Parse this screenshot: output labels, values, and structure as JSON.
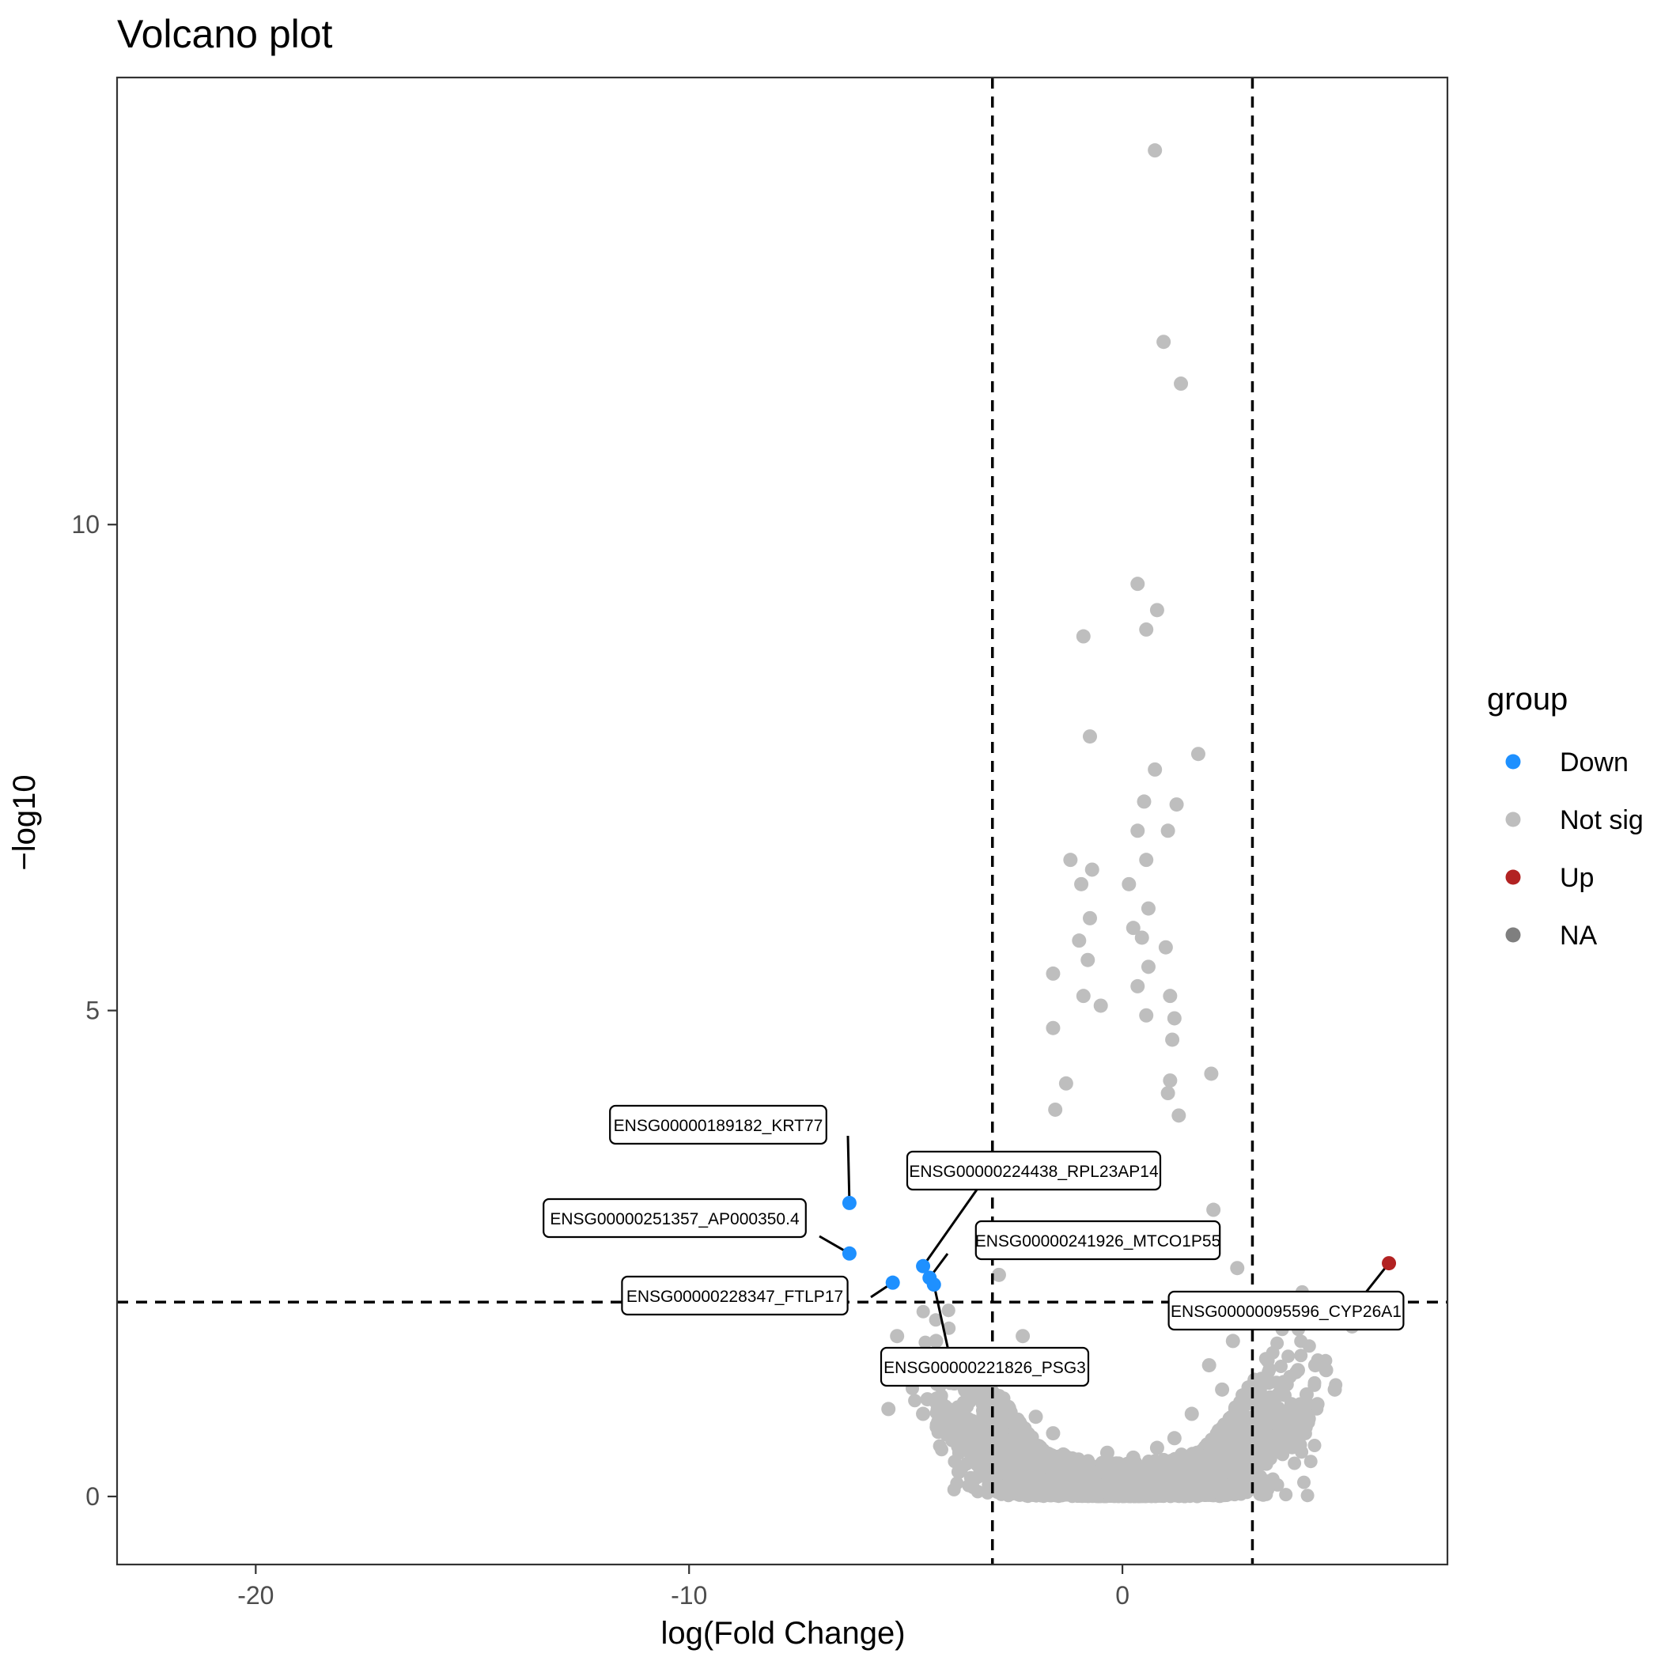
{
  "chart_data": {
    "type": "scatter",
    "title": "Volcano plot",
    "xlabel": "log(Fold Change)",
    "ylabel": "−log10",
    "xlim": [
      -23.2,
      7.5
    ],
    "ylim": [
      -0.7,
      14.6
    ],
    "x_ticks": [
      -20,
      -10,
      0
    ],
    "y_ticks": [
      0,
      5,
      10
    ],
    "x_tick_labels": [
      "-20",
      "-10",
      "0"
    ],
    "y_tick_labels": [
      "0",
      "5",
      "10"
    ],
    "grid": false,
    "thresholds": {
      "x": [
        -3,
        3
      ],
      "y": 2
    },
    "legend": {
      "title": "group",
      "position": "right",
      "entries": [
        {
          "label": "Down",
          "color": "#1E90FF"
        },
        {
          "label": "Not sig",
          "color": "#BEBEBE"
        },
        {
          "label": "Up",
          "color": "#B22222"
        },
        {
          "label": "NA",
          "color": "#7F7F7F"
        }
      ]
    },
    "colors": {
      "Down": "#1E90FF",
      "Not sig": "#BEBEBE",
      "Up": "#B22222"
    },
    "not_sig_points": [
      [
        0.75,
        13.85
      ],
      [
        0.95,
        11.88
      ],
      [
        1.35,
        11.45
      ],
      [
        0.35,
        9.39
      ],
      [
        0.8,
        9.12
      ],
      [
        -0.9,
        8.85
      ],
      [
        0.55,
        8.92
      ],
      [
        -0.75,
        7.82
      ],
      [
        1.75,
        7.64
      ],
      [
        0.75,
        7.48
      ],
      [
        0.5,
        7.15
      ],
      [
        1.25,
        7.12
      ],
      [
        0.35,
        6.85
      ],
      [
        1.05,
        6.85
      ],
      [
        -1.2,
        6.55
      ],
      [
        -0.7,
        6.45
      ],
      [
        0.55,
        6.55
      ],
      [
        -0.95,
        6.3
      ],
      [
        0.15,
        6.3
      ],
      [
        0.6,
        6.05
      ],
      [
        -0.75,
        5.95
      ],
      [
        0.25,
        5.85
      ],
      [
        -1.0,
        5.72
      ],
      [
        0.45,
        5.75
      ],
      [
        1.0,
        5.65
      ],
      [
        -0.8,
        5.52
      ],
      [
        0.6,
        5.45
      ],
      [
        -1.6,
        5.38
      ],
      [
        0.35,
        5.25
      ],
      [
        -0.9,
        5.15
      ],
      [
        1.1,
        5.15
      ],
      [
        -0.5,
        5.05
      ],
      [
        0.55,
        4.95
      ],
      [
        1.2,
        4.92
      ],
      [
        -1.6,
        4.82
      ],
      [
        1.15,
        4.7
      ],
      [
        2.05,
        4.35
      ],
      [
        1.1,
        4.28
      ],
      [
        -1.3,
        4.25
      ],
      [
        1.05,
        4.15
      ],
      [
        -1.55,
        3.98
      ],
      [
        1.3,
        3.92
      ],
      [
        2.1,
        2.95
      ],
      [
        1.9,
        2.65
      ],
      [
        2.65,
        2.35
      ],
      [
        -2.85,
        2.28
      ],
      [
        2.55,
        1.6
      ],
      [
        -5.2,
        1.65
      ],
      [
        -4.3,
        1.6
      ],
      [
        -4.8,
        1.45
      ],
      [
        -4.45,
        1.25
      ],
      [
        -4.75,
        1.2
      ],
      [
        -4.5,
        1.0
      ],
      [
        -4.6,
        0.85
      ],
      [
        -5.4,
        0.9
      ],
      [
        -3.9,
        1.35
      ],
      [
        -3.5,
        1.2
      ],
      [
        -3.7,
        0.9
      ],
      [
        -2.3,
        1.65
      ],
      [
        -2.1,
        1.38
      ],
      [
        2.0,
        1.35
      ],
      [
        2.3,
        1.1
      ],
      [
        3.35,
        1.4
      ],
      [
        3.05,
        1.2
      ],
      [
        4.05,
        1.3
      ],
      [
        4.45,
        1.35
      ],
      [
        4.7,
        1.3
      ],
      [
        3.6,
        1.05
      ],
      [
        3.9,
        0.95
      ],
      [
        4.25,
        1.05
      ],
      [
        4.5,
        0.95
      ],
      [
        4.3,
        0.8
      ],
      [
        5.3,
        1.75
      ],
      [
        4.9,
        1.1
      ],
      [
        3.75,
        0.75
      ],
      [
        3.2,
        0.88
      ],
      [
        3.5,
        0.6
      ],
      [
        2.8,
        0.65
      ],
      [
        -3.2,
        0.82
      ],
      [
        -2.8,
        0.68
      ],
      [
        -2.4,
        0.75
      ],
      [
        -2.0,
        0.82
      ],
      [
        1.6,
        0.85
      ],
      [
        1.2,
        0.6
      ],
      [
        2.15,
        0.55
      ],
      [
        -1.6,
        0.65
      ],
      [
        0.25,
        0.4
      ],
      [
        -0.35,
        0.45
      ],
      [
        0.8,
        0.5
      ],
      [
        -0.9,
        0.35
      ]
    ],
    "not_sig_density": {
      "description_hidden": true,
      "center_x": 0,
      "spread_x": 4.2
    },
    "labeled_points": [
      {
        "x": -6.3,
        "y": 3.02,
        "group": "Down",
        "label": "ENSG00000189182_KRT77"
      },
      {
        "x": -6.3,
        "y": 2.5,
        "group": "Down",
        "label": "ENSG00000251357_AP000350.4"
      },
      {
        "x": -4.6,
        "y": 2.37,
        "group": "Down",
        "label": "ENSG00000224438_RPL23AP14"
      },
      {
        "x": -4.45,
        "y": 2.25,
        "group": "Down",
        "label": "ENSG00000241926_MTCO1P55"
      },
      {
        "x": -5.3,
        "y": 2.2,
        "group": "Down",
        "label": "ENSG00000228347_FTLP17"
      },
      {
        "x": -4.35,
        "y": 2.18,
        "group": "Down",
        "label": "ENSG00000221826_PSG3"
      },
      {
        "x": 6.15,
        "y": 2.4,
        "group": "Up",
        "label": "ENSG00000095596_CYP26A1"
      }
    ]
  }
}
